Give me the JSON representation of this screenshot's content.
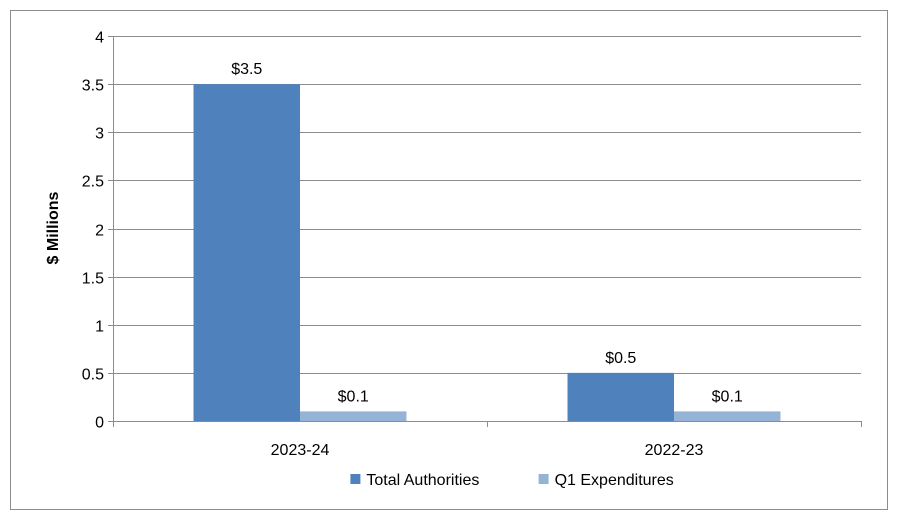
{
  "chart_data": {
    "type": "bar",
    "title": "",
    "xlabel": "",
    "ylabel": "$ Millions",
    "ylim": [
      0,
      4
    ],
    "yticks": [
      0,
      0.5,
      1,
      1.5,
      2,
      2.5,
      3,
      3.5,
      4
    ],
    "ytick_labels": [
      "0",
      "0.5",
      "1",
      "1.5",
      "2",
      "2.5",
      "3",
      "3.5",
      "4"
    ],
    "categories": [
      "2023-24",
      "2022-23"
    ],
    "grid": true,
    "legend_position": "bottom",
    "series": [
      {
        "name": "Total Authorities",
        "color": "#4f81bd",
        "values": [
          3.5,
          0.5
        ],
        "labels": [
          "$3.5",
          "$0.5"
        ]
      },
      {
        "name": "Q1 Expenditures",
        "color": "#95b3d7",
        "values": [
          0.1,
          0.1
        ],
        "labels": [
          "$0.1",
          "$0.1"
        ]
      }
    ]
  }
}
